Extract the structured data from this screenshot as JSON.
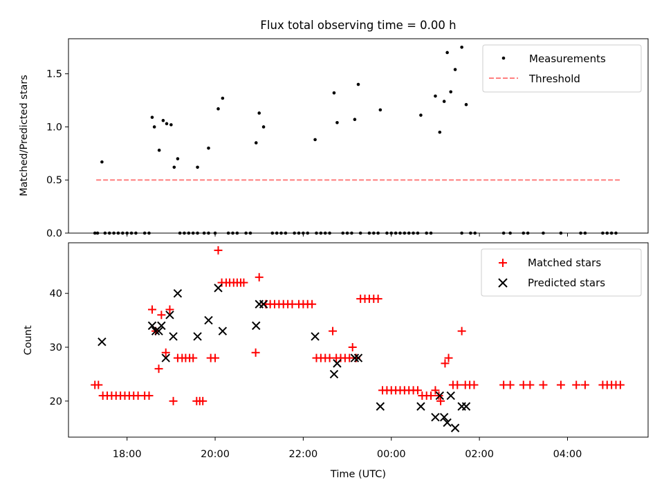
{
  "chart_data": [
    {
      "type": "scatter",
      "title": "Flux total observing time = 0.00 h",
      "xlabel": "",
      "ylabel": "Matched/Predicted stars",
      "xlim": [
        16.67,
        29.83
      ],
      "ylim": [
        0,
        1.83
      ],
      "yticks": [
        0.0,
        0.5,
        1.0,
        1.5
      ],
      "ytick_labels": [
        "0.0",
        "0.5",
        "1.0",
        "1.5"
      ],
      "legend_position": "top-right",
      "series": [
        {
          "name": "Measurements",
          "marker": "dot",
          "color": "#000000",
          "points": [
            [
              17.43,
              0.67
            ],
            [
              18.57,
              1.09
            ],
            [
              18.62,
              1.0
            ],
            [
              18.73,
              0.78
            ],
            [
              18.82,
              1.06
            ],
            [
              18.9,
              1.03
            ],
            [
              19.0,
              1.02
            ],
            [
              19.07,
              0.62
            ],
            [
              19.15,
              0.7
            ],
            [
              19.6,
              0.62
            ],
            [
              19.85,
              0.8
            ],
            [
              20.07,
              1.17
            ],
            [
              20.17,
              1.27
            ],
            [
              20.93,
              0.85
            ],
            [
              21.0,
              1.13
            ],
            [
              21.1,
              1.0
            ],
            [
              22.27,
              0.88
            ],
            [
              22.7,
              1.32
            ],
            [
              22.77,
              1.04
            ],
            [
              23.17,
              1.07
            ],
            [
              23.25,
              1.4
            ],
            [
              23.75,
              1.16
            ],
            [
              24.67,
              1.11
            ],
            [
              25.0,
              1.29
            ],
            [
              25.1,
              0.95
            ],
            [
              25.2,
              1.24
            ],
            [
              25.27,
              1.7
            ],
            [
              25.35,
              1.33
            ],
            [
              25.45,
              1.54
            ],
            [
              25.6,
              1.75
            ],
            [
              25.7,
              1.21
            ],
            [
              17.27,
              0
            ],
            [
              17.33,
              0
            ],
            [
              17.5,
              0
            ],
            [
              17.6,
              0
            ],
            [
              17.7,
              0
            ],
            [
              17.8,
              0
            ],
            [
              17.9,
              0
            ],
            [
              18.0,
              0
            ],
            [
              18.1,
              0
            ],
            [
              18.2,
              0
            ],
            [
              18.4,
              0
            ],
            [
              18.5,
              0
            ],
            [
              19.2,
              0
            ],
            [
              19.3,
              0
            ],
            [
              19.4,
              0
            ],
            [
              19.5,
              0
            ],
            [
              19.6,
              0
            ],
            [
              19.75,
              0
            ],
            [
              19.85,
              0
            ],
            [
              20.0,
              0
            ],
            [
              20.3,
              0
            ],
            [
              20.4,
              0
            ],
            [
              20.5,
              0
            ],
            [
              20.7,
              0
            ],
            [
              20.8,
              0
            ],
            [
              21.3,
              0
            ],
            [
              21.4,
              0
            ],
            [
              21.5,
              0
            ],
            [
              21.6,
              0
            ],
            [
              21.8,
              0
            ],
            [
              21.9,
              0
            ],
            [
              22.0,
              0
            ],
            [
              22.1,
              0
            ],
            [
              22.3,
              0
            ],
            [
              22.4,
              0
            ],
            [
              22.5,
              0
            ],
            [
              22.6,
              0
            ],
            [
              22.9,
              0
            ],
            [
              23.0,
              0
            ],
            [
              23.1,
              0
            ],
            [
              23.3,
              0
            ],
            [
              23.5,
              0
            ],
            [
              23.6,
              0
            ],
            [
              23.7,
              0
            ],
            [
              23.9,
              0
            ],
            [
              24.0,
              0
            ],
            [
              24.1,
              0
            ],
            [
              24.2,
              0
            ],
            [
              24.3,
              0
            ],
            [
              24.4,
              0
            ],
            [
              24.5,
              0
            ],
            [
              24.6,
              0
            ],
            [
              24.8,
              0
            ],
            [
              24.9,
              0
            ],
            [
              25.6,
              0
            ],
            [
              25.8,
              0
            ],
            [
              25.9,
              0
            ],
            [
              26.55,
              0
            ],
            [
              26.7,
              0
            ],
            [
              27.0,
              0
            ],
            [
              27.1,
              0
            ],
            [
              27.45,
              0
            ],
            [
              27.85,
              0
            ],
            [
              28.3,
              0
            ],
            [
              28.4,
              0
            ],
            [
              28.8,
              0
            ],
            [
              28.9,
              0
            ],
            [
              29.0,
              0
            ],
            [
              29.1,
              0
            ]
          ]
        },
        {
          "name": "Threshold",
          "marker": "dashed-line",
          "color": "#ff7f7f",
          "x": [
            17.3,
            29.2
          ],
          "y": [
            0.5,
            0.5
          ]
        }
      ]
    },
    {
      "type": "scatter",
      "title": "",
      "xlabel": "Time (UTC)",
      "ylabel": "Count",
      "xlim": [
        16.67,
        29.83
      ],
      "ylim": [
        13.3,
        49.4
      ],
      "yticks": [
        20,
        30,
        40
      ],
      "ytick_labels": [
        "20",
        "30",
        "40"
      ],
      "xticks": [
        18,
        20,
        22,
        24,
        26,
        28
      ],
      "xtick_labels": [
        "18:00",
        "20:00",
        "22:00",
        "00:00",
        "02:00",
        "04:00"
      ],
      "legend_position": "top-right",
      "series": [
        {
          "name": "Matched stars",
          "marker": "plus",
          "color": "#ff0000",
          "points": [
            [
              17.27,
              23
            ],
            [
              17.35,
              23
            ],
            [
              17.45,
              21
            ],
            [
              17.55,
              21
            ],
            [
              17.65,
              21
            ],
            [
              17.75,
              21
            ],
            [
              17.85,
              21
            ],
            [
              17.95,
              21
            ],
            [
              18.05,
              21
            ],
            [
              18.15,
              21
            ],
            [
              18.25,
              21
            ],
            [
              18.4,
              21
            ],
            [
              18.5,
              21
            ],
            [
              18.57,
              37
            ],
            [
              18.65,
              33
            ],
            [
              18.72,
              26
            ],
            [
              18.78,
              36
            ],
            [
              18.88,
              29
            ],
            [
              18.97,
              37
            ],
            [
              19.05,
              20
            ],
            [
              19.15,
              28
            ],
            [
              19.25,
              28
            ],
            [
              19.33,
              28
            ],
            [
              19.42,
              28
            ],
            [
              19.5,
              28
            ],
            [
              19.58,
              20
            ],
            [
              19.65,
              20
            ],
            [
              19.72,
              20
            ],
            [
              19.9,
              28
            ],
            [
              20.0,
              28
            ],
            [
              20.07,
              48
            ],
            [
              20.15,
              42
            ],
            [
              20.25,
              42
            ],
            [
              20.33,
              42
            ],
            [
              20.42,
              42
            ],
            [
              20.5,
              42
            ],
            [
              20.58,
              42
            ],
            [
              20.65,
              42
            ],
            [
              20.92,
              29
            ],
            [
              21.0,
              43
            ],
            [
              21.15,
              38
            ],
            [
              21.25,
              38
            ],
            [
              21.35,
              38
            ],
            [
              21.45,
              38
            ],
            [
              21.55,
              38
            ],
            [
              21.65,
              38
            ],
            [
              21.75,
              38
            ],
            [
              21.9,
              38
            ],
            [
              22.0,
              38
            ],
            [
              22.1,
              38
            ],
            [
              22.2,
              38
            ],
            [
              22.3,
              28
            ],
            [
              22.4,
              28
            ],
            [
              22.5,
              28
            ],
            [
              22.6,
              28
            ],
            [
              22.67,
              33
            ],
            [
              22.75,
              28
            ],
            [
              22.85,
              28
            ],
            [
              22.95,
              28
            ],
            [
              23.05,
              28
            ],
            [
              23.12,
              30
            ],
            [
              23.2,
              28
            ],
            [
              23.3,
              39
            ],
            [
              23.4,
              39
            ],
            [
              23.5,
              39
            ],
            [
              23.6,
              39
            ],
            [
              23.7,
              39
            ],
            [
              23.8,
              22
            ],
            [
              23.9,
              22
            ],
            [
              24.0,
              22
            ],
            [
              24.1,
              22
            ],
            [
              24.2,
              22
            ],
            [
              24.3,
              22
            ],
            [
              24.4,
              22
            ],
            [
              24.5,
              22
            ],
            [
              24.6,
              22
            ],
            [
              24.7,
              21
            ],
            [
              24.8,
              21
            ],
            [
              24.9,
              21
            ],
            [
              25.0,
              22
            ],
            [
              25.08,
              21
            ],
            [
              25.12,
              20
            ],
            [
              25.22,
              27
            ],
            [
              25.3,
              28
            ],
            [
              25.4,
              23
            ],
            [
              25.5,
              23
            ],
            [
              25.6,
              33
            ],
            [
              25.68,
              23
            ],
            [
              25.78,
              23
            ],
            [
              25.88,
              23
            ],
            [
              26.55,
              23
            ],
            [
              26.7,
              23
            ],
            [
              27.0,
              23
            ],
            [
              27.15,
              23
            ],
            [
              27.45,
              23
            ],
            [
              27.85,
              23
            ],
            [
              28.2,
              23
            ],
            [
              28.4,
              23
            ],
            [
              28.8,
              23
            ],
            [
              28.9,
              23
            ],
            [
              29.0,
              23
            ],
            [
              29.1,
              23
            ],
            [
              29.2,
              23
            ]
          ]
        },
        {
          "name": "Predicted stars",
          "marker": "x",
          "color": "#000000",
          "points": [
            [
              17.43,
              31
            ],
            [
              18.57,
              34
            ],
            [
              18.65,
              33
            ],
            [
              18.72,
              33
            ],
            [
              18.78,
              34
            ],
            [
              18.88,
              28
            ],
            [
              18.97,
              36
            ],
            [
              19.05,
              32
            ],
            [
              19.15,
              40
            ],
            [
              19.6,
              32
            ],
            [
              19.85,
              35
            ],
            [
              20.07,
              41
            ],
            [
              20.17,
              33
            ],
            [
              20.93,
              34
            ],
            [
              21.0,
              38
            ],
            [
              21.1,
              38
            ],
            [
              22.27,
              32
            ],
            [
              22.7,
              25
            ],
            [
              22.77,
              27
            ],
            [
              23.17,
              28
            ],
            [
              23.25,
              28
            ],
            [
              23.75,
              19
            ],
            [
              24.67,
              19
            ],
            [
              25.0,
              17
            ],
            [
              25.1,
              21
            ],
            [
              25.2,
              17
            ],
            [
              25.27,
              16
            ],
            [
              25.35,
              21
            ],
            [
              25.45,
              15
            ],
            [
              25.6,
              19
            ],
            [
              25.7,
              19
            ]
          ]
        }
      ]
    }
  ]
}
